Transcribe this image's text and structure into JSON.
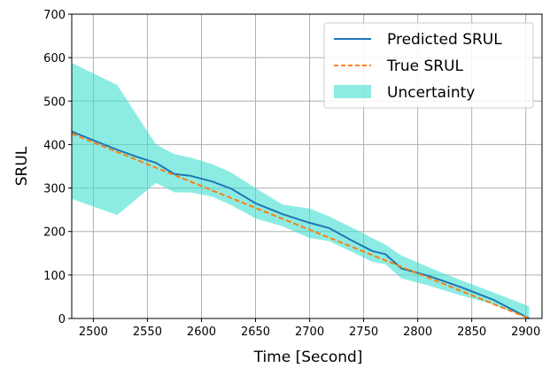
{
  "chart_data": {
    "type": "line",
    "title": "",
    "xlabel": "Time [Second]",
    "ylabel": "SRUL",
    "xlim": [
      2480,
      2915
    ],
    "ylim": [
      0,
      700
    ],
    "xticks": [
      2500,
      2550,
      2600,
      2650,
      2700,
      2750,
      2800,
      2850,
      2900
    ],
    "yticks": [
      0,
      100,
      200,
      300,
      400,
      500,
      600,
      700
    ],
    "grid": true,
    "legend_position": "top-right",
    "series": [
      {
        "name": "Predicted SRUL",
        "style": "solid",
        "color": "#1f77b4",
        "x": [
          2480,
          2500,
          2520,
          2540,
          2558,
          2575,
          2590,
          2610,
          2628,
          2650,
          2675,
          2700,
          2718,
          2740,
          2758,
          2770,
          2785,
          2810,
          2840,
          2870,
          2903
        ],
        "y": [
          430,
          410,
          390,
          372,
          358,
          332,
          328,
          315,
          298,
          265,
          240,
          220,
          208,
          178,
          155,
          148,
          115,
          98,
          72,
          43,
          0
        ]
      },
      {
        "name": "True SRUL",
        "style": "dashed",
        "color": "#ff7f0e",
        "x": [
          2480,
          2903
        ],
        "y": [
          425,
          0
        ]
      }
    ],
    "band": {
      "name": "Uncertainty",
      "color": "#40e0d0",
      "x": [
        2480,
        2522,
        2558,
        2575,
        2590,
        2610,
        2628,
        2650,
        2675,
        2700,
        2718,
        2740,
        2758,
        2770,
        2785,
        2810,
        2840,
        2870,
        2903
      ],
      "upper": [
        588,
        537,
        400,
        378,
        370,
        355,
        335,
        300,
        262,
        253,
        235,
        208,
        185,
        170,
        145,
        118,
        88,
        60,
        28
      ],
      "lower": [
        275,
        238,
        312,
        290,
        290,
        280,
        260,
        230,
        212,
        185,
        178,
        152,
        130,
        125,
        92,
        76,
        53,
        32,
        0
      ]
    }
  }
}
